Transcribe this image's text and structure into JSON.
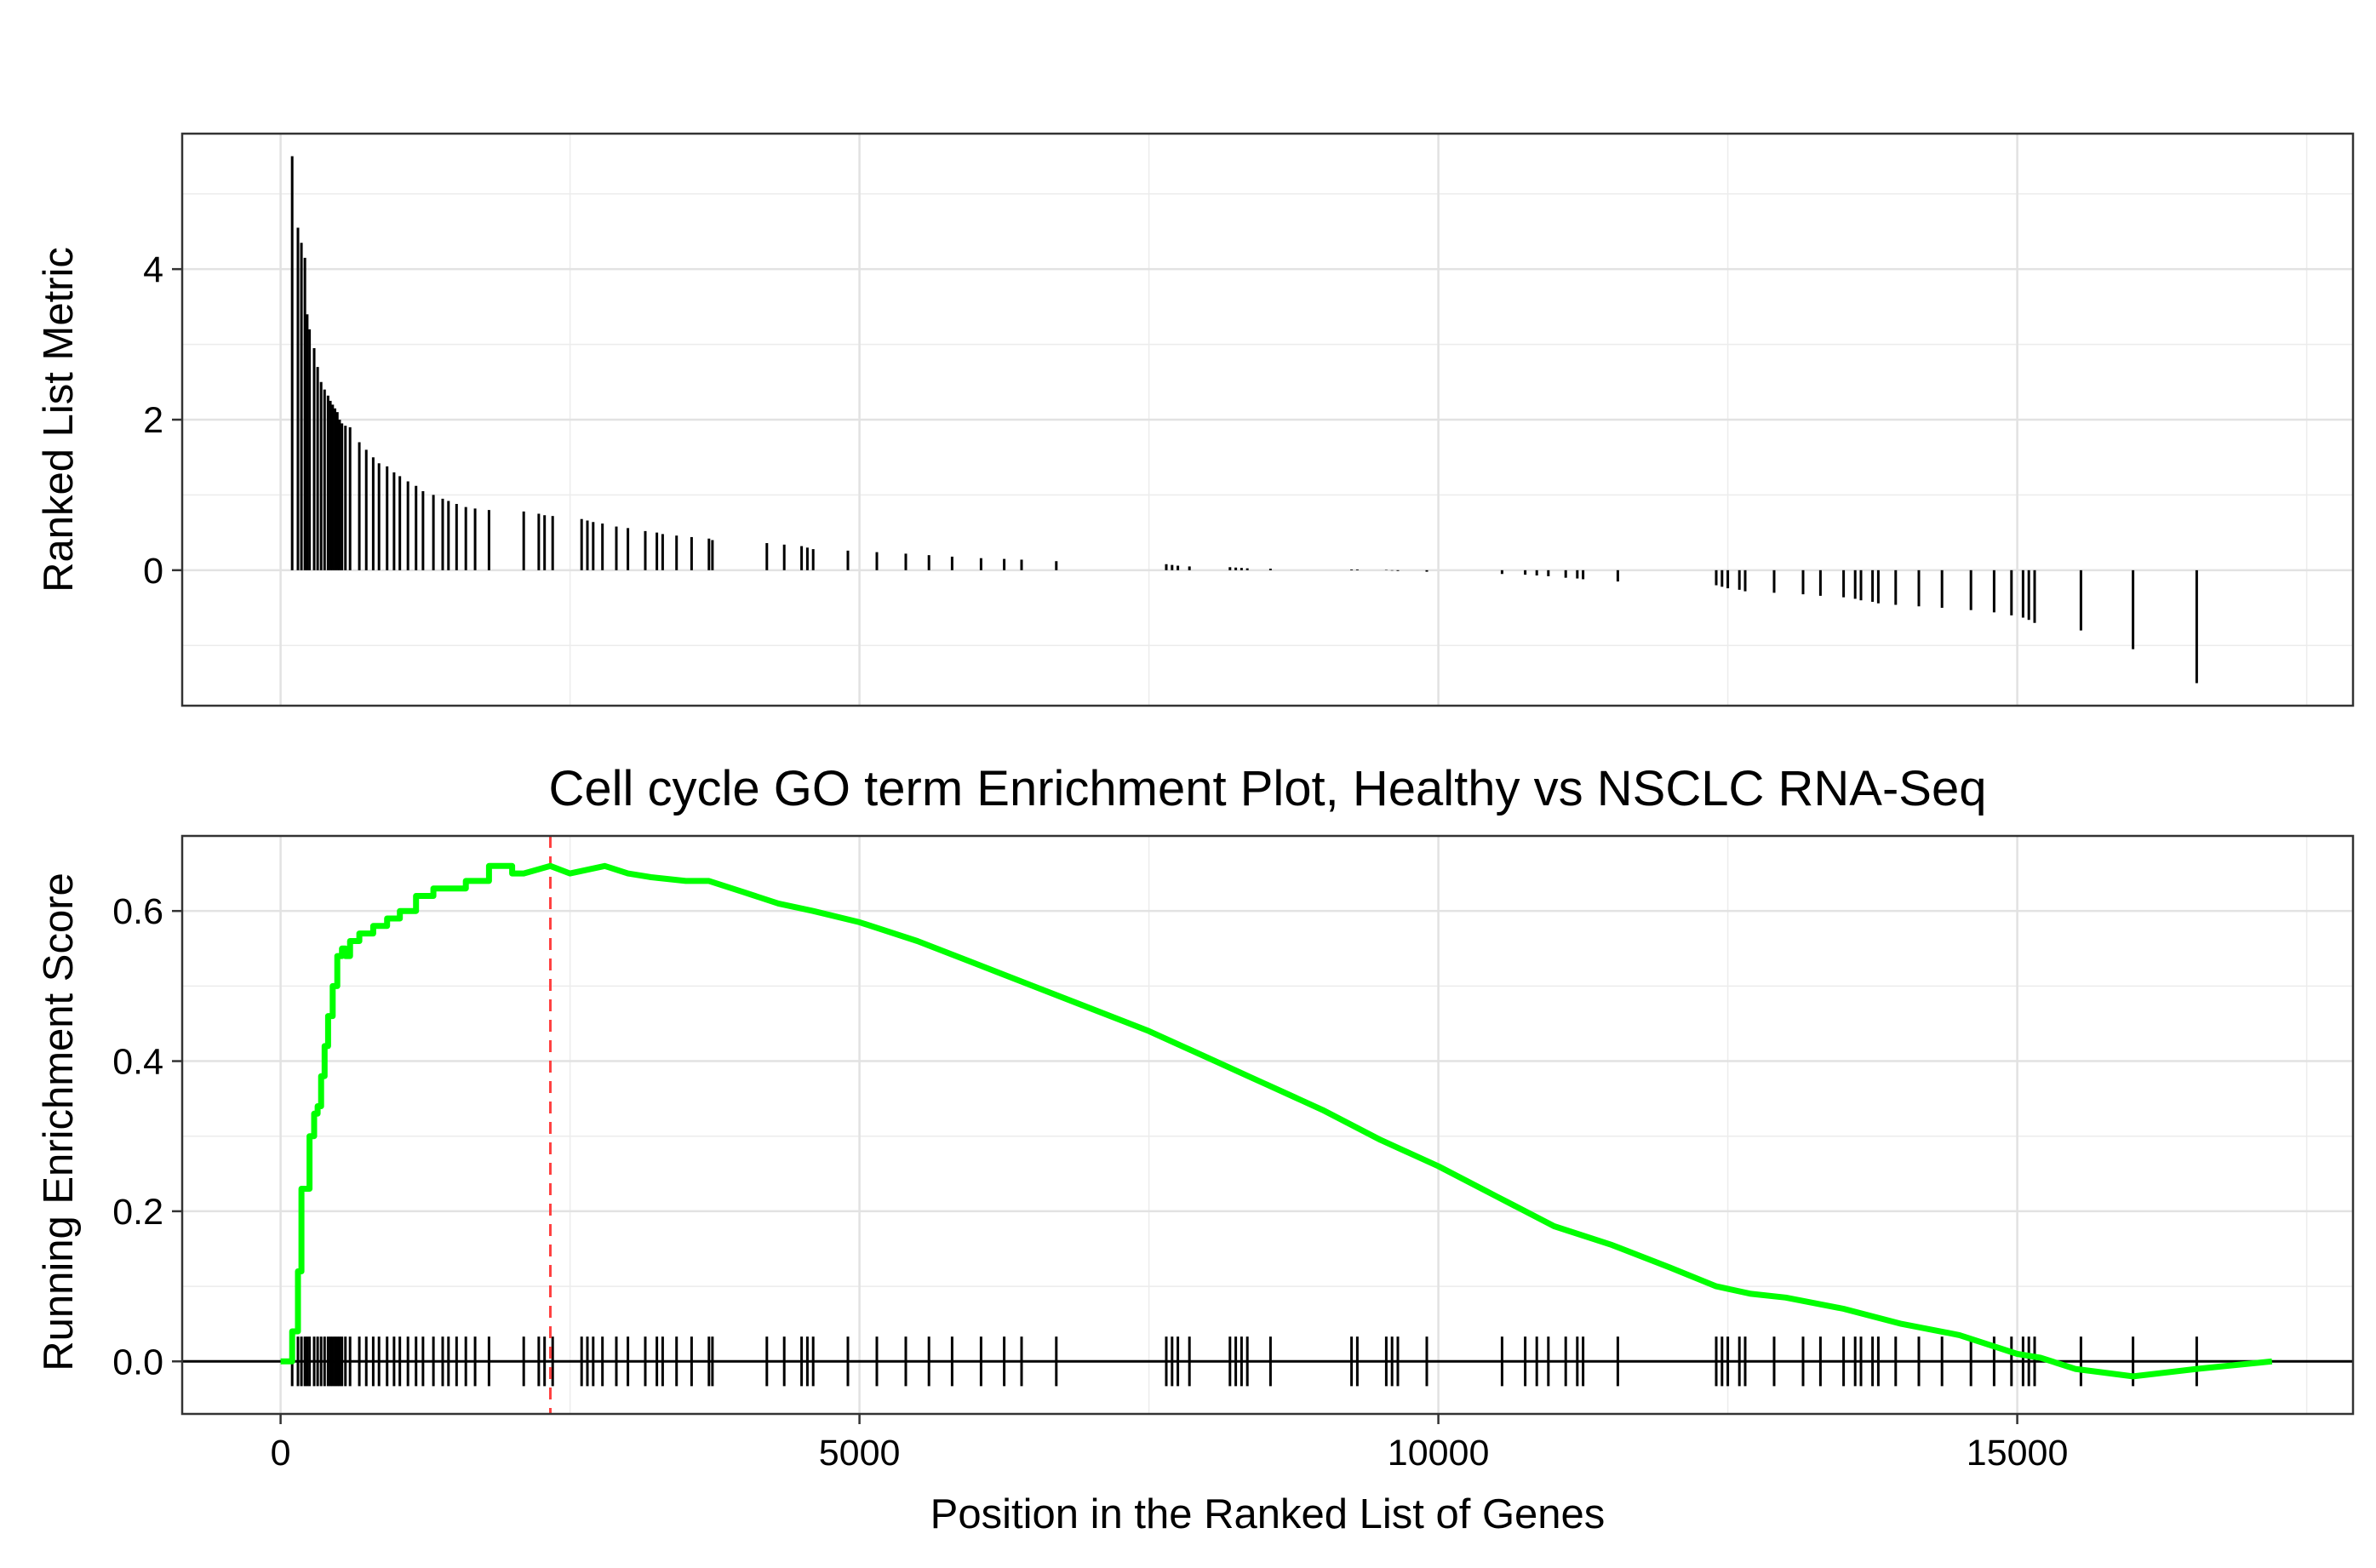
{
  "chart_data": [
    {
      "type": "bar",
      "panel": "ranked-metric",
      "ylabel": "Ranked List Metric",
      "xlabel": "",
      "xlim": [
        -850,
        17900
      ],
      "ylim": [
        -1.8,
        5.8
      ],
      "yticks": [
        0,
        2,
        4
      ],
      "grid": true,
      "bar_color": "#000000",
      "positions": [
        100,
        150,
        180,
        210,
        230,
        250,
        290,
        320,
        350,
        380,
        410,
        430,
        450,
        470,
        490,
        510,
        530,
        560,
        600,
        680,
        740,
        800,
        850,
        920,
        980,
        1030,
        1100,
        1170,
        1230,
        1320,
        1400,
        1450,
        1520,
        1600,
        1680,
        1800,
        2100,
        2230,
        2280,
        2350,
        2600,
        2650,
        2700,
        2780,
        2900,
        3000,
        3150,
        3250,
        3300,
        3420,
        3550,
        3700,
        3730,
        4200,
        4350,
        4500,
        4550,
        4600,
        4900,
        5150,
        5400,
        5600,
        5800,
        6050,
        6250,
        6400,
        6700,
        7650,
        7700,
        7750,
        7850,
        8200,
        8250,
        8300,
        8350,
        8550,
        9250,
        9300,
        9550,
        9600,
        9650,
        9900,
        10550,
        10750,
        10850,
        10950,
        11100,
        11200,
        11250,
        11550,
        12400,
        12450,
        12500,
        12600,
        12650,
        12900,
        13150,
        13300,
        13500,
        13600,
        13650,
        13750,
        13800,
        13950,
        14150,
        14350,
        14600,
        14800,
        14950,
        15050,
        15100,
        15150,
        15550,
        16000,
        16550
      ],
      "values": [
        5.5,
        4.55,
        4.35,
        4.15,
        3.4,
        3.2,
        2.95,
        2.7,
        2.5,
        2.4,
        2.32,
        2.25,
        2.2,
        2.15,
        2.1,
        2.0,
        1.95,
        1.92,
        1.9,
        1.7,
        1.6,
        1.5,
        1.42,
        1.38,
        1.3,
        1.25,
        1.18,
        1.12,
        1.05,
        1.0,
        0.95,
        0.92,
        0.88,
        0.84,
        0.82,
        0.8,
        0.78,
        0.75,
        0.73,
        0.72,
        0.68,
        0.66,
        0.64,
        0.62,
        0.58,
        0.56,
        0.52,
        0.5,
        0.48,
        0.46,
        0.44,
        0.42,
        0.4,
        0.36,
        0.34,
        0.32,
        0.3,
        0.28,
        0.26,
        0.24,
        0.22,
        0.2,
        0.18,
        0.16,
        0.15,
        0.14,
        0.12,
        0.08,
        0.07,
        0.06,
        0.05,
        0.04,
        0.035,
        0.03,
        0.025,
        0.02,
        0.01,
        0.01,
        0.005,
        -0.005,
        -0.01,
        -0.02,
        -0.05,
        -0.06,
        -0.07,
        -0.08,
        -0.1,
        -0.11,
        -0.12,
        -0.15,
        -0.2,
        -0.22,
        -0.24,
        -0.26,
        -0.28,
        -0.3,
        -0.32,
        -0.34,
        -0.36,
        -0.38,
        -0.4,
        -0.42,
        -0.44,
        -0.46,
        -0.48,
        -0.5,
        -0.53,
        -0.56,
        -0.6,
        -0.63,
        -0.66,
        -0.7,
        -0.8,
        -1.05,
        -1.5
      ]
    },
    {
      "type": "line",
      "panel": "enrichment",
      "title": "Cell cycle GO term Enrichment Plot, Healthy vs NSCLC RNA-Seq",
      "xlabel": "Position in the Ranked List of Genes",
      "ylabel": "Running Enrichment Score",
      "xlim": [
        -850,
        17900
      ],
      "ylim": [
        -0.07,
        0.7
      ],
      "xticks": [
        0,
        5000,
        10000,
        15000
      ],
      "yticks": [
        0.0,
        0.2,
        0.4,
        0.6
      ],
      "yticklabels": [
        "0.0",
        "0.2",
        "0.4",
        "0.6"
      ],
      "grid": true,
      "line_color": "#00ff00",
      "peak_line_color": "#ff4040",
      "peak_position": 2330,
      "series": [
        {
          "x": [
            0,
            100,
            150,
            180,
            210,
            250,
            290,
            320,
            350,
            380,
            410,
            450,
            490,
            530,
            560,
            600,
            680,
            800,
            920,
            1030,
            1170,
            1320,
            1450,
            1600,
            1800,
            2000,
            2100,
            2330,
            2500,
            2800,
            3000,
            3200,
            3500,
            3700,
            4000,
            4300,
            4600,
            5000,
            5500,
            6000,
            6500,
            7000,
            7500,
            8000,
            8500,
            9000,
            9500,
            10000,
            10500,
            11000,
            11500,
            12000,
            12400,
            12700,
            13000,
            13500,
            14000,
            14500,
            15000,
            15200,
            15500,
            16000,
            16550,
            17200
          ],
          "values": [
            0.0,
            0.04,
            0.12,
            0.23,
            0.23,
            0.3,
            0.33,
            0.34,
            0.38,
            0.42,
            0.46,
            0.5,
            0.54,
            0.55,
            0.54,
            0.56,
            0.57,
            0.58,
            0.59,
            0.6,
            0.62,
            0.63,
            0.63,
            0.64,
            0.66,
            0.65,
            0.65,
            0.66,
            0.65,
            0.66,
            0.65,
            0.645,
            0.64,
            0.64,
            0.625,
            0.61,
            0.6,
            0.585,
            0.56,
            0.53,
            0.5,
            0.47,
            0.44,
            0.405,
            0.37,
            0.335,
            0.295,
            0.26,
            0.22,
            0.18,
            0.155,
            0.125,
            0.1,
            0.09,
            0.085,
            0.07,
            0.05,
            0.035,
            0.01,
            0.005,
            -0.01,
            -0.02,
            -0.01,
            0.0
          ]
        }
      ],
      "hits": [
        100,
        150,
        180,
        210,
        230,
        250,
        290,
        320,
        350,
        380,
        410,
        430,
        450,
        470,
        490,
        510,
        530,
        560,
        600,
        680,
        740,
        800,
        850,
        920,
        980,
        1030,
        1100,
        1170,
        1230,
        1320,
        1400,
        1450,
        1520,
        1600,
        1680,
        1800,
        2100,
        2230,
        2280,
        2350,
        2600,
        2650,
        2700,
        2780,
        2900,
        3000,
        3150,
        3250,
        3300,
        3420,
        3550,
        3700,
        3730,
        4200,
        4350,
        4500,
        4550,
        4600,
        4900,
        5150,
        5400,
        5600,
        5800,
        6050,
        6250,
        6400,
        6700,
        7650,
        7700,
        7750,
        7850,
        8200,
        8250,
        8300,
        8350,
        8550,
        9250,
        9300,
        9550,
        9600,
        9650,
        9900,
        10550,
        10750,
        10850,
        10950,
        11100,
        11200,
        11250,
        11550,
        12400,
        12450,
        12500,
        12600,
        12650,
        12900,
        13150,
        13300,
        13500,
        13600,
        13650,
        13750,
        13800,
        13950,
        14150,
        14350,
        14600,
        14800,
        14950,
        15050,
        15100,
        15150,
        15550,
        16000,
        16550
      ]
    }
  ]
}
